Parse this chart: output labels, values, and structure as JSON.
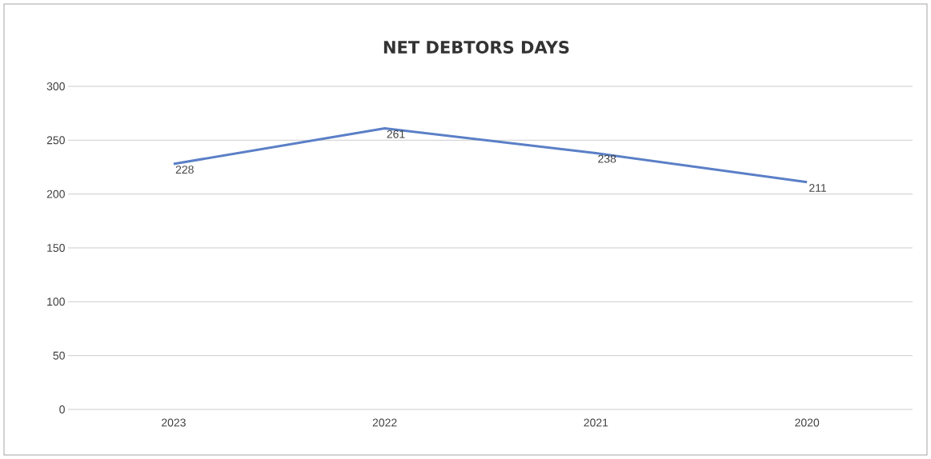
{
  "chart_data": {
    "type": "line",
    "title": "NET DEBTORS DAYS",
    "categories": [
      "2023",
      "2022",
      "2021",
      "2020"
    ],
    "values": [
      228,
      261,
      238,
      211
    ],
    "color": "#5b7fc7",
    "ylim": [
      0,
      300
    ],
    "yticks": [
      0,
      50,
      100,
      150,
      200,
      250,
      300
    ],
    "grid": "y",
    "data_labels": true,
    "marker": "none",
    "line_style": "solid"
  }
}
